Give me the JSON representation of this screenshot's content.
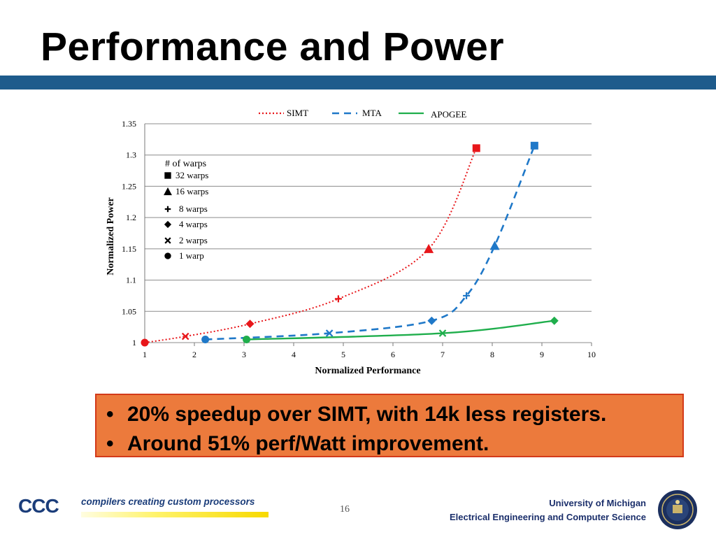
{
  "slide": {
    "title": "Performance and Power",
    "bullets": [
      "20% speedup over SIMT, with 14k less registers.",
      "Around 51% perf/Watt improvement."
    ],
    "bullet_symbol": "•",
    "page_number": "16",
    "footer_logo": {
      "mark": "CCC",
      "tagline": "compilers creating custom processors"
    },
    "university": [
      "University of Michigan",
      "Electrical Engineering and Computer Science"
    ],
    "colors": {
      "band": "#1e5b8c",
      "callout": "#ec7a3c",
      "callout_border": "#d33a1a"
    }
  },
  "chart_data": {
    "type": "line",
    "xlabel": "Normalized Performance",
    "ylabel": "Normalized Power",
    "xlim": [
      1,
      10
    ],
    "ylim": [
      1,
      1.35
    ],
    "x_ticks": [
      1,
      2,
      3,
      4,
      5,
      6,
      7,
      8,
      9,
      10
    ],
    "y_ticks": [
      "1",
      "1.05",
      "1.1",
      "1.15",
      "1.2",
      "1.25",
      "1.3",
      "1.35"
    ],
    "grid": true,
    "legend_position": "top",
    "series": [
      {
        "name": "SIMT",
        "color": "#e8161a",
        "style": "dotted",
        "points": [
          {
            "x": 1,
            "y": 1,
            "marker": "circle"
          },
          {
            "x": 1.82,
            "y": 1.01,
            "marker": "x"
          },
          {
            "x": 3.12,
            "y": 1.03,
            "marker": "diamond"
          },
          {
            "x": 4.9,
            "y": 1.07,
            "marker": "plus"
          },
          {
            "x": 6.72,
            "y": 1.15,
            "marker": "triangle"
          },
          {
            "x": 7.68,
            "y": 1.311,
            "marker": "square"
          }
        ]
      },
      {
        "name": "MTA",
        "color": "#1f78c8",
        "style": "dashed",
        "points": [
          {
            "x": 2.22,
            "y": 1.005,
            "marker": "circle"
          },
          {
            "x": 4.72,
            "y": 1.015,
            "marker": "x"
          },
          {
            "x": 6.78,
            "y": 1.035,
            "marker": "diamond"
          },
          {
            "x": 7.48,
            "y": 1.075,
            "marker": "plus"
          },
          {
            "x": 8.05,
            "y": 1.155,
            "marker": "triangle"
          },
          {
            "x": 8.85,
            "y": 1.315,
            "marker": "square"
          }
        ]
      },
      {
        "name": "APOGEE",
        "color": "#1fae4c",
        "style": "solid",
        "points": [
          {
            "x": 3.05,
            "y": 1.005,
            "marker": "circle"
          },
          {
            "x": 7.0,
            "y": 1.015,
            "marker": "x"
          },
          {
            "x": 9.25,
            "y": 1.035,
            "marker": "diamond"
          }
        ]
      }
    ],
    "marker_legend": {
      "title": "# of warps",
      "items": [
        {
          "marker": "square",
          "label": "32 warps"
        },
        {
          "marker": "triangle",
          "label": "16 warps"
        },
        {
          "marker": "plus",
          "label": "8 warps"
        },
        {
          "marker": "diamond",
          "label": "4 warps"
        },
        {
          "marker": "x",
          "label": "2 warps"
        },
        {
          "marker": "circle",
          "label": "1 warp"
        }
      ]
    }
  }
}
